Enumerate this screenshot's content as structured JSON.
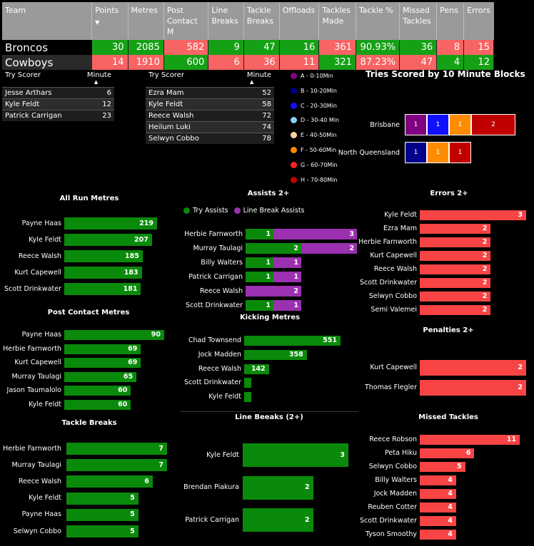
{
  "summary": {
    "headers": [
      "Team",
      "Points",
      "Metres",
      "Post Contact M",
      "Line Breaks",
      "Tackle Breaks",
      "Offloads",
      "Tackles Made",
      "Tackle %",
      "Missed Tackles",
      "Pens",
      "Errors"
    ],
    "rows": [
      {
        "team": "Broncos",
        "cells": [
          "30",
          "2085",
          "582",
          "9",
          "47",
          "16",
          "361",
          "90.93%",
          "36",
          "8",
          "15"
        ],
        "colors": [
          "g",
          "g",
          "r",
          "g",
          "g",
          "g",
          "r",
          "g",
          "g",
          "r",
          "r"
        ]
      },
      {
        "team": "Cowboys",
        "cells": [
          "14",
          "1910",
          "600",
          "6",
          "36",
          "11",
          "321",
          "87.23%",
          "47",
          "4",
          "12"
        ],
        "colors": [
          "r",
          "r",
          "g",
          "r",
          "r",
          "r",
          "g",
          "r",
          "r",
          "g",
          "g"
        ]
      }
    ]
  },
  "try_scorers_left": {
    "col1": "Try Scorer",
    "col2": "Minute",
    "rows": [
      [
        "Jesse Arthars",
        "6"
      ],
      [
        "Kyle Feldt",
        "12"
      ],
      [
        "Patrick Carrigan",
        "23"
      ]
    ]
  },
  "try_scorers_right": {
    "col1": "Try Scorer",
    "col2": "Minute",
    "rows": [
      [
        "Ezra Mam",
        "52"
      ],
      [
        "Kyle Feldt",
        "58"
      ],
      [
        "Reece Walsh",
        "72"
      ],
      [
        "Heilum Luki",
        "74"
      ],
      [
        "Selwyn Cobbo",
        "78"
      ]
    ]
  },
  "legend": [
    {
      "label": "A - 0-10Min",
      "color": "#800080"
    },
    {
      "label": "B - 10-20Min",
      "color": "#00008b"
    },
    {
      "label": "C - 20-30Min",
      "color": "#1010ff"
    },
    {
      "label": "D - 30-40 Min",
      "color": "#87cefa"
    },
    {
      "label": "E - 40-50Min",
      "color": "#ffd2a0"
    },
    {
      "label": "F - 50-60Min",
      "color": "#ff8c00"
    },
    {
      "label": "G - 60-70Min",
      "color": "#ff2020"
    },
    {
      "label": "H - 70-80Min",
      "color": "#c00000"
    }
  ],
  "tries_blocks": {
    "title": "Tries Scored by 10 Minute Blocks",
    "rows": [
      {
        "team": "Brisbane",
        "segments": [
          {
            "value": 1,
            "color": "#800080"
          },
          {
            "value": 1,
            "color": "#1010ff"
          },
          {
            "value": 1,
            "color": "#ff8c00"
          },
          {
            "value": 2,
            "color": "#c00000"
          }
        ]
      },
      {
        "team": "North Queensland",
        "segments": [
          {
            "value": 1,
            "color": "#00008b"
          },
          {
            "value": 1,
            "color": "#ff8c00"
          },
          {
            "value": 1,
            "color": "#c00000"
          }
        ]
      }
    ]
  },
  "chart_data": [
    {
      "type": "bar",
      "title": "All Run Metres",
      "categories": [
        "Payne Haas",
        "Kyle Feldt",
        "Reece Walsh",
        "Kurt Capewell",
        "Scott Drinkwater"
      ],
      "values": [
        219,
        207,
        185,
        183,
        181
      ],
      "color": "#0a8a0a"
    },
    {
      "type": "bar",
      "title": "Post Contact Metres",
      "categories": [
        "Payne Haas",
        "Herbie Farnworth",
        "Kurt Capewell",
        "Murray Taulagi",
        "Jason Taumalolo",
        "Kyle Feldt"
      ],
      "values": [
        90,
        69,
        69,
        65,
        60,
        60
      ],
      "color": "#0a8a0a"
    },
    {
      "type": "bar",
      "title": "Tackle Breaks",
      "categories": [
        "Herbie Farnworth",
        "Murray Taulagi",
        "Reece Walsh",
        "Kyle Feldt",
        "Payne Haas",
        "Selwyn Cobbo"
      ],
      "values": [
        7,
        7,
        6,
        5,
        5,
        5
      ],
      "color": "#0a8a0a"
    },
    {
      "type": "bar",
      "title": "Assists 2+",
      "legend": [
        "Try Assists",
        "Line Break Assists"
      ],
      "categories": [
        "Herbie Farnworth",
        "Murray Taulagi",
        "Billy Walters",
        "Patrick Carrigan",
        "Reece Walsh",
        "Scott Drinkwater"
      ],
      "series": [
        {
          "name": "Try Assists",
          "values": [
            1,
            2,
            1,
            1,
            0,
            1
          ],
          "color": "#0a8a0a"
        },
        {
          "name": "Line Break Assists",
          "values": [
            3,
            2,
            1,
            1,
            2,
            1
          ],
          "color": "#9b30b0"
        }
      ]
    },
    {
      "type": "bar",
      "title": "Kicking Metres",
      "categories": [
        "Chad Townsend",
        "Jock Madden",
        "Reece Walsh",
        "Scott Drinkwater",
        "Kyle Feldt"
      ],
      "values": [
        551,
        358,
        142,
        null,
        null
      ],
      "color": "#0a8a0a"
    },
    {
      "type": "bar",
      "title": "Line Beeaks (2+)",
      "categories": [
        "Kyle Feldt",
        "Brendan Piakura",
        "Patrick Carrigan"
      ],
      "values": [
        3,
        2,
        2
      ],
      "color": "#0a8a0a"
    },
    {
      "type": "bar",
      "title": "Errors 2+",
      "categories": [
        "Kyle Feldt",
        "Ezra Mam",
        "Herbie Farnworth",
        "Kurt Capewell",
        "Reece Walsh",
        "Scott Drinkwater",
        "Selwyn Cobbo",
        "Semi Valemei"
      ],
      "values": [
        3,
        2,
        2,
        2,
        2,
        2,
        2,
        2
      ],
      "color": "#f84444"
    },
    {
      "type": "bar",
      "title": "Penalties 2+",
      "categories": [
        "Kurt Capewell",
        "Thomas Flegler"
      ],
      "values": [
        2,
        2
      ],
      "color": "#f84444"
    },
    {
      "type": "bar",
      "title": "Missed Tackles",
      "categories": [
        "Reece Robson",
        "Peta Hiku",
        "Selwyn Cobbo",
        "Billy Walters",
        "Jock Madden",
        "Reuben Cotter",
        "Scott Drinkwater",
        "Tyson Smoothy"
      ],
      "values": [
        11,
        6,
        5,
        4,
        4,
        4,
        4,
        4
      ],
      "color": "#f84444"
    }
  ]
}
